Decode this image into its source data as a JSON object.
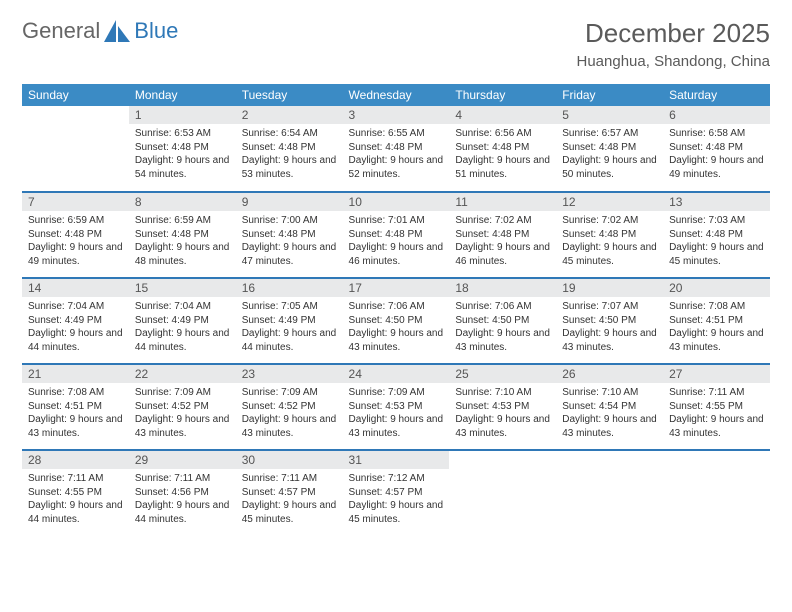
{
  "brand": {
    "general": "General",
    "blue": "Blue"
  },
  "title": "December 2025",
  "location": "Huanghua, Shandong, China",
  "columns": [
    "Sunday",
    "Monday",
    "Tuesday",
    "Wednesday",
    "Thursday",
    "Friday",
    "Saturday"
  ],
  "colors": {
    "header_bg": "#3b8bc5",
    "header_text": "#ffffff",
    "rule": "#2f78b7",
    "daynum_bg": "#e8e9ea",
    "text": "#333333",
    "brand_gray": "#666666",
    "brand_blue": "#2f78b7",
    "page_bg": "#ffffff"
  },
  "weeks": [
    [
      null,
      {
        "n": "1",
        "sr": "6:53 AM",
        "ss": "4:48 PM",
        "dl": "9 hours and 54 minutes."
      },
      {
        "n": "2",
        "sr": "6:54 AM",
        "ss": "4:48 PM",
        "dl": "9 hours and 53 minutes."
      },
      {
        "n": "3",
        "sr": "6:55 AM",
        "ss": "4:48 PM",
        "dl": "9 hours and 52 minutes."
      },
      {
        "n": "4",
        "sr": "6:56 AM",
        "ss": "4:48 PM",
        "dl": "9 hours and 51 minutes."
      },
      {
        "n": "5",
        "sr": "6:57 AM",
        "ss": "4:48 PM",
        "dl": "9 hours and 50 minutes."
      },
      {
        "n": "6",
        "sr": "6:58 AM",
        "ss": "4:48 PM",
        "dl": "9 hours and 49 minutes."
      }
    ],
    [
      {
        "n": "7",
        "sr": "6:59 AM",
        "ss": "4:48 PM",
        "dl": "9 hours and 49 minutes."
      },
      {
        "n": "8",
        "sr": "6:59 AM",
        "ss": "4:48 PM",
        "dl": "9 hours and 48 minutes."
      },
      {
        "n": "9",
        "sr": "7:00 AM",
        "ss": "4:48 PM",
        "dl": "9 hours and 47 minutes."
      },
      {
        "n": "10",
        "sr": "7:01 AM",
        "ss": "4:48 PM",
        "dl": "9 hours and 46 minutes."
      },
      {
        "n": "11",
        "sr": "7:02 AM",
        "ss": "4:48 PM",
        "dl": "9 hours and 46 minutes."
      },
      {
        "n": "12",
        "sr": "7:02 AM",
        "ss": "4:48 PM",
        "dl": "9 hours and 45 minutes."
      },
      {
        "n": "13",
        "sr": "7:03 AM",
        "ss": "4:48 PM",
        "dl": "9 hours and 45 minutes."
      }
    ],
    [
      {
        "n": "14",
        "sr": "7:04 AM",
        "ss": "4:49 PM",
        "dl": "9 hours and 44 minutes."
      },
      {
        "n": "15",
        "sr": "7:04 AM",
        "ss": "4:49 PM",
        "dl": "9 hours and 44 minutes."
      },
      {
        "n": "16",
        "sr": "7:05 AM",
        "ss": "4:49 PM",
        "dl": "9 hours and 44 minutes."
      },
      {
        "n": "17",
        "sr": "7:06 AM",
        "ss": "4:50 PM",
        "dl": "9 hours and 43 minutes."
      },
      {
        "n": "18",
        "sr": "7:06 AM",
        "ss": "4:50 PM",
        "dl": "9 hours and 43 minutes."
      },
      {
        "n": "19",
        "sr": "7:07 AM",
        "ss": "4:50 PM",
        "dl": "9 hours and 43 minutes."
      },
      {
        "n": "20",
        "sr": "7:08 AM",
        "ss": "4:51 PM",
        "dl": "9 hours and 43 minutes."
      }
    ],
    [
      {
        "n": "21",
        "sr": "7:08 AM",
        "ss": "4:51 PM",
        "dl": "9 hours and 43 minutes."
      },
      {
        "n": "22",
        "sr": "7:09 AM",
        "ss": "4:52 PM",
        "dl": "9 hours and 43 minutes."
      },
      {
        "n": "23",
        "sr": "7:09 AM",
        "ss": "4:52 PM",
        "dl": "9 hours and 43 minutes."
      },
      {
        "n": "24",
        "sr": "7:09 AM",
        "ss": "4:53 PM",
        "dl": "9 hours and 43 minutes."
      },
      {
        "n": "25",
        "sr": "7:10 AM",
        "ss": "4:53 PM",
        "dl": "9 hours and 43 minutes."
      },
      {
        "n": "26",
        "sr": "7:10 AM",
        "ss": "4:54 PM",
        "dl": "9 hours and 43 minutes."
      },
      {
        "n": "27",
        "sr": "7:11 AM",
        "ss": "4:55 PM",
        "dl": "9 hours and 43 minutes."
      }
    ],
    [
      {
        "n": "28",
        "sr": "7:11 AM",
        "ss": "4:55 PM",
        "dl": "9 hours and 44 minutes."
      },
      {
        "n": "29",
        "sr": "7:11 AM",
        "ss": "4:56 PM",
        "dl": "9 hours and 44 minutes."
      },
      {
        "n": "30",
        "sr": "7:11 AM",
        "ss": "4:57 PM",
        "dl": "9 hours and 45 minutes."
      },
      {
        "n": "31",
        "sr": "7:12 AM",
        "ss": "4:57 PM",
        "dl": "9 hours and 45 minutes."
      },
      null,
      null,
      null
    ]
  ],
  "labels": {
    "sunrise": "Sunrise:",
    "sunset": "Sunset:",
    "daylight": "Daylight:"
  }
}
